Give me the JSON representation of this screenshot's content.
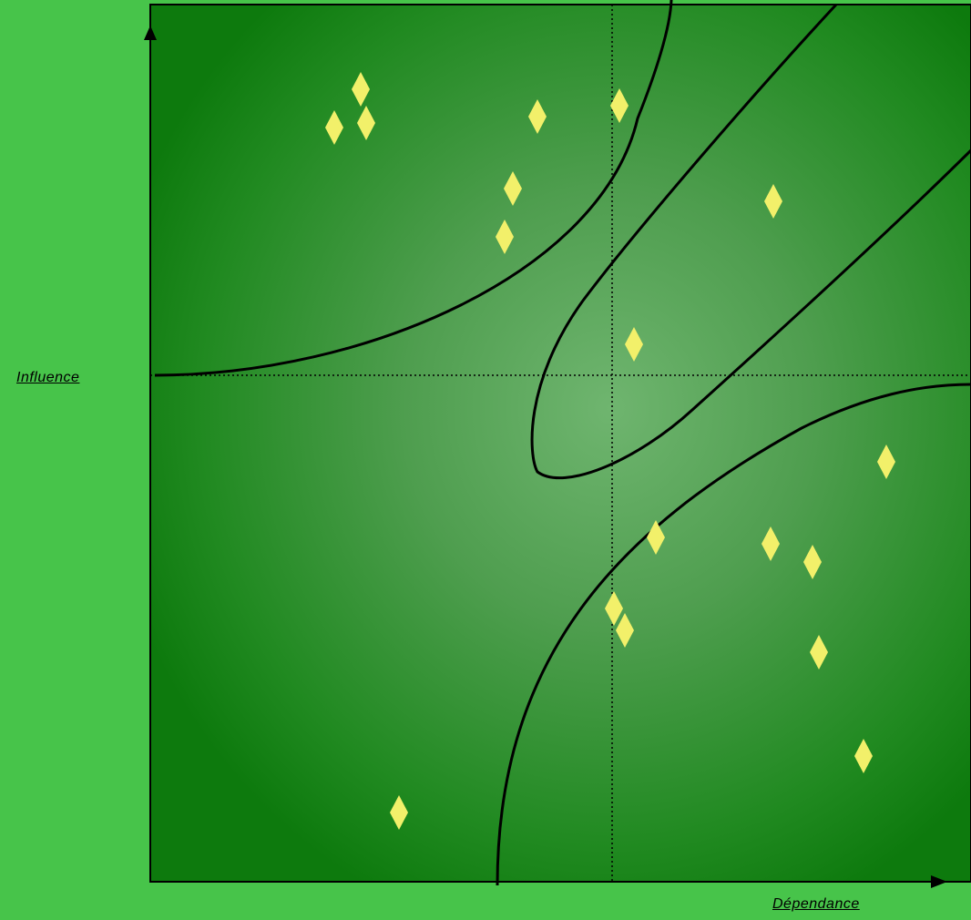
{
  "diagram": {
    "x_axis_label": "Dépendance",
    "y_axis_label": "Influence",
    "background_color": "#47c44a",
    "panel_edge_color": "#0d7a0d",
    "panel_center_color": "#6fb56f",
    "point_color": "#f2f06a",
    "point_shape": "diamond",
    "curve_color": "#000000",
    "quadrant_divider_style": "dotted"
  }
}
